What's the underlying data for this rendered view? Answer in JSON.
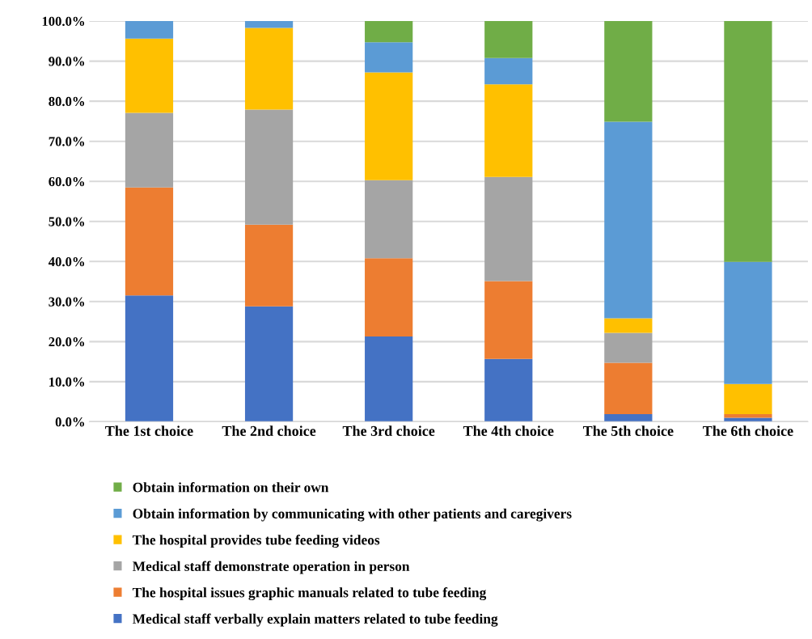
{
  "chart_data": {
    "type": "bar",
    "stacked": true,
    "categories": [
      "The 1st choice",
      "The 2nd choice",
      "The 3rd choice",
      "The 4th choice",
      "The 5th choice",
      "The 6th choice"
    ],
    "series": [
      {
        "name": "Medical staff verbally explain matters related to tube feeding",
        "color": "#4472c4",
        "values": [
          31.5,
          28.8,
          21.3,
          15.7,
          1.9,
          1.0
        ]
      },
      {
        "name": "The hospital issues graphic manuals related to tube feeding",
        "color": "#ed7d31",
        "values": [
          27.0,
          20.4,
          19.5,
          19.4,
          12.8,
          0.9
        ]
      },
      {
        "name": "Medical staff demonstrate operation in person",
        "color": "#a5a5a5",
        "values": [
          18.6,
          28.7,
          19.5,
          26.0,
          7.5,
          0.0
        ]
      },
      {
        "name": "The hospital provides tube feeding videos",
        "color": "#ffc000",
        "values": [
          18.5,
          20.4,
          26.9,
          23.1,
          3.6,
          7.5
        ]
      },
      {
        "name": "Obtain information by communicating with other patients and caregivers",
        "color": "#5b9bd5",
        "values": [
          4.4,
          1.7,
          7.5,
          6.6,
          49.1,
          30.5
        ]
      },
      {
        "name": "Obtain information on their own",
        "color": "#70ad47",
        "values": [
          0.0,
          0.0,
          5.3,
          9.2,
          25.1,
          60.1
        ]
      }
    ],
    "ylim": [
      0,
      100
    ],
    "yticks": [
      {
        "value": 0,
        "label": "0.0%"
      },
      {
        "value": 10,
        "label": "10.0%"
      },
      {
        "value": 20,
        "label": "20.0%"
      },
      {
        "value": 30,
        "label": "30.0%"
      },
      {
        "value": 40,
        "label": "40.0%"
      },
      {
        "value": 50,
        "label": "50.0%"
      },
      {
        "value": 60,
        "label": "60.0%"
      },
      {
        "value": 70,
        "label": "70.0%"
      },
      {
        "value": 80,
        "label": "80.0%"
      },
      {
        "value": 90,
        "label": "90.0%"
      },
      {
        "value": 100,
        "label": "100.0%"
      }
    ],
    "grid": "y",
    "legend": "bottom"
  }
}
